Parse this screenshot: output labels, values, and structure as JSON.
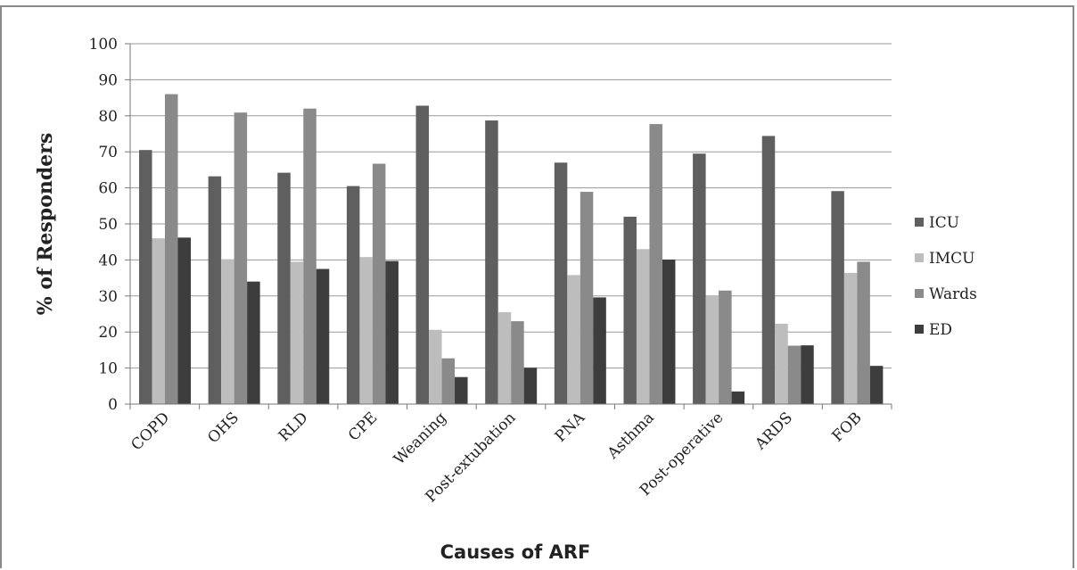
{
  "chart_data": {
    "type": "bar",
    "categories": [
      "COPD",
      "OHS",
      "RLD",
      "CPE",
      "Weaning",
      "Post-extubation",
      "PNA",
      "Asthma",
      "Post-operative",
      "ARDS",
      "FOB"
    ],
    "series": [
      {
        "name": "ICU",
        "color": "#5f5f5f",
        "values": [
          70.5,
          63.2,
          64.2,
          60.5,
          82.8,
          78.7,
          67,
          52,
          69.5,
          74.4,
          59.1
        ]
      },
      {
        "name": "IMCU",
        "color": "#bdbdbd",
        "values": [
          46,
          40.2,
          39.5,
          40.8,
          20.6,
          25.5,
          35.8,
          43,
          30,
          22.3,
          36.4
        ]
      },
      {
        "name": "Wards",
        "color": "#8a8a8a",
        "values": [
          86,
          80.9,
          82,
          66.7,
          12.7,
          23,
          58.9,
          77.7,
          31.5,
          16.2,
          39.5
        ]
      },
      {
        "name": "ED",
        "color": "#3d3d3d",
        "values": [
          46.2,
          34,
          37.5,
          39.7,
          7.5,
          10.1,
          29.6,
          40.1,
          3.5,
          16.3,
          10.6
        ]
      }
    ],
    "xlabel": "Causes of ARF",
    "ylabel": "% of Responders",
    "ylim": [
      0,
      100
    ],
    "yticks": [
      "0",
      "10",
      "20",
      "30",
      "40",
      "50",
      "60",
      "70",
      "80",
      "90",
      "100"
    ],
    "grid": true,
    "legend": "right"
  }
}
